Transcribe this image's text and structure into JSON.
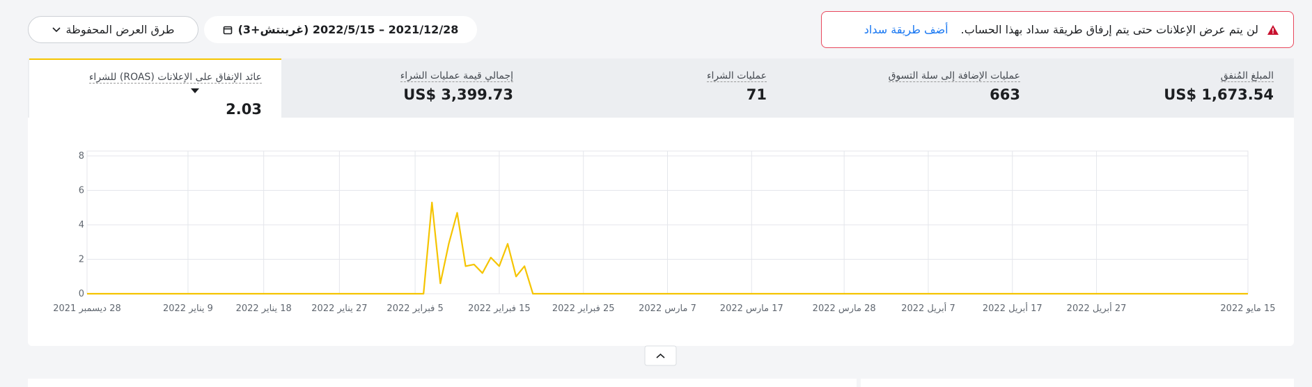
{
  "alert": {
    "message": "لن يتم عرض الإعلانات حتى يتم إرفاق طريقة سداد بهذا الحساب.",
    "link": "أضف طريقة سداد"
  },
  "date_range": "2021/12/28 – 2022/5/15 (غرينتش+3)",
  "saved_views": "طرق العرض المحفوظة",
  "metrics": [
    {
      "label": "المبلغ المُنفق",
      "value": "US$ 1,673.54"
    },
    {
      "label": "عمليات الإضافة إلى سلة التسوق",
      "value": 663
    },
    {
      "label": "عمليات الشراء",
      "value": 71
    },
    {
      "label": "إجمالي قيمة عمليات الشراء",
      "value": "US$ 3,399.73"
    },
    {
      "label": "عائد الإنفاق على الإعلانات (ROAS) للشراء",
      "value": 2.03
    }
  ],
  "chart_data": {
    "type": "line",
    "color": "#f5c400",
    "grid": true,
    "x": [
      "2021-12-28",
      "2022-02-06",
      "2022-02-07",
      "2022-02-08",
      "2022-02-09",
      "2022-02-10",
      "2022-02-11",
      "2022-02-12",
      "2022-02-13",
      "2022-02-14",
      "2022-02-15",
      "2022-02-16",
      "2022-02-17",
      "2022-02-18",
      "2022-02-19",
      "2022-05-15"
    ],
    "values": [
      0,
      0,
      5.3,
      0.6,
      2.9,
      4.7,
      1.6,
      1.7,
      1.2,
      2.1,
      1.6,
      2.9,
      1.0,
      1.6,
      0,
      0
    ],
    "xlim": [
      "2021-12-28",
      "2022-05-15"
    ],
    "xticks": [
      {
        "value": "2021-12-28",
        "label": "28 ديسمبر 2021"
      },
      {
        "value": "2022-01-09",
        "label": "9 يناير 2022"
      },
      {
        "value": "2022-01-18",
        "label": "18 يناير 2022"
      },
      {
        "value": "2022-01-27",
        "label": "27 يناير 2022"
      },
      {
        "value": "2022-02-05",
        "label": "5 فبراير 2022"
      },
      {
        "value": "2022-02-15",
        "label": "15 فبراير 2022"
      },
      {
        "value": "2022-02-25",
        "label": "25 فبراير 2022"
      },
      {
        "value": "2022-03-07",
        "label": "7 مارس 2022"
      },
      {
        "value": "2022-03-17",
        "label": "17 مارس 2022"
      },
      {
        "value": "2022-03-28",
        "label": "28 مارس 2022"
      },
      {
        "value": "2022-04-07",
        "label": "7 أبريل 2022"
      },
      {
        "value": "2022-04-17",
        "label": "17 أبريل 2022"
      },
      {
        "value": "2022-04-27",
        "label": "27 أبريل 2022"
      },
      {
        "value": "2022-05-15",
        "label": "15 مايو 2022"
      }
    ],
    "ylim": [
      0,
      8
    ],
    "yticks": [
      0,
      2,
      4,
      6,
      8
    ]
  }
}
